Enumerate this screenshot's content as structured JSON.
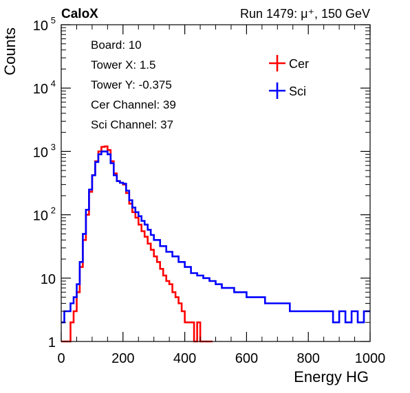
{
  "header": {
    "left": "CaloX",
    "right": "Run 1479:   μ⁺, 150 GeV"
  },
  "info": [
    "Board: 10",
    "Tower X: 1.5",
    "Tower Y: -0.375",
    "Cer Channel: 39",
    "Sci Channel: 37"
  ],
  "chart_data": {
    "type": "line",
    "title": "",
    "xlabel": "Energy HG",
    "ylabel": "Counts",
    "xlim": [
      0,
      1000
    ],
    "ylim": [
      1,
      100000
    ],
    "ylog": true,
    "grid": false,
    "legend_position": "top-right",
    "x_ticks": [
      "0",
      "200",
      "400",
      "600",
      "800",
      "1000"
    ],
    "y_ticks": [
      {
        "value": 1,
        "base": "1",
        "exp": ""
      },
      {
        "value": 10,
        "base": "10",
        "exp": ""
      },
      {
        "value": 100,
        "base": "10",
        "exp": "2"
      },
      {
        "value": 1000,
        "base": "10",
        "exp": "3"
      },
      {
        "value": 10000,
        "base": "10",
        "exp": "4"
      },
      {
        "value": 100000,
        "base": "10",
        "exp": "5"
      }
    ],
    "series": [
      {
        "name": "Cer",
        "color": "#ff0000",
        "x": [
          0,
          10,
          20,
          30,
          40,
          50,
          60,
          70,
          80,
          90,
          100,
          110,
          120,
          130,
          140,
          150,
          160,
          170,
          180,
          190,
          200,
          210,
          220,
          230,
          240,
          250,
          260,
          270,
          280,
          290,
          300,
          310,
          320,
          330,
          340,
          350,
          360,
          370,
          380,
          390,
          400,
          410,
          420,
          430,
          440,
          450,
          460,
          470,
          480
        ],
        "y": [
          1,
          1,
          1,
          2,
          3,
          6,
          15,
          40,
          100,
          230,
          420,
          700,
          1000,
          1180,
          1200,
          1050,
          700,
          450,
          340,
          320,
          300,
          220,
          150,
          110,
          90,
          70,
          55,
          45,
          35,
          28,
          22,
          18,
          14,
          11,
          9,
          8,
          6,
          5,
          4,
          3,
          2,
          2,
          2,
          1,
          2,
          1,
          1,
          1,
          1
        ]
      },
      {
        "name": "Sci",
        "color": "#0000ff",
        "x": [
          0,
          10,
          20,
          30,
          40,
          50,
          60,
          70,
          80,
          90,
          100,
          110,
          120,
          130,
          140,
          150,
          160,
          170,
          180,
          190,
          200,
          210,
          220,
          230,
          240,
          250,
          260,
          270,
          280,
          290,
          300,
          320,
          340,
          360,
          380,
          400,
          420,
          440,
          460,
          480,
          500,
          520,
          540,
          560,
          580,
          600,
          620,
          640,
          660,
          680,
          700,
          720,
          740,
          760,
          780,
          800,
          820,
          840,
          860,
          880,
          900,
          920,
          940,
          960,
          980,
          1000
        ],
        "y": [
          2,
          3,
          3,
          4,
          5,
          8,
          18,
          50,
          120,
          250,
          420,
          680,
          900,
          1000,
          1000,
          900,
          650,
          420,
          340,
          320,
          310,
          240,
          170,
          130,
          110,
          95,
          80,
          70,
          58,
          48,
          40,
          32,
          26,
          22,
          18,
          15,
          12,
          11,
          10,
          9,
          8,
          7,
          7,
          6,
          6,
          5,
          5,
          5,
          4,
          4,
          4,
          4,
          3,
          3,
          3,
          3,
          3,
          3,
          3,
          2,
          3,
          2,
          3,
          2,
          3,
          3
        ]
      }
    ]
  }
}
